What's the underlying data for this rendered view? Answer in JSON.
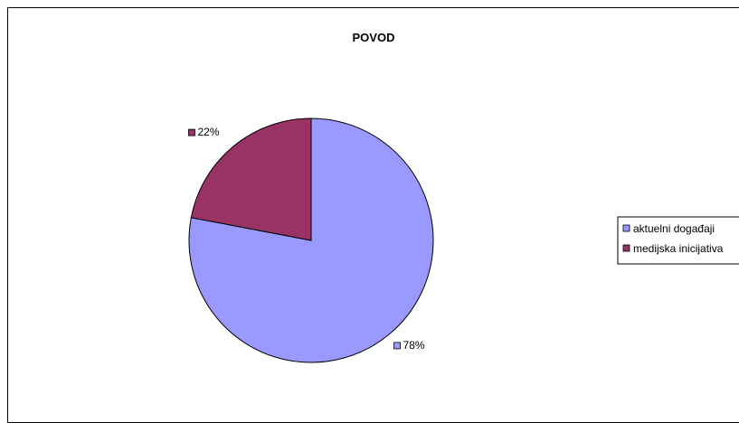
{
  "chart_data": {
    "type": "pie",
    "title": "POVOD",
    "slices": [
      {
        "label": "aktuelni događaji",
        "value": 78,
        "display": "78%",
        "color": "#9999ff"
      },
      {
        "label": "medijska inicijativa",
        "value": 22,
        "display": "22%",
        "color": "#993366"
      }
    ],
    "legend_position": "right"
  }
}
